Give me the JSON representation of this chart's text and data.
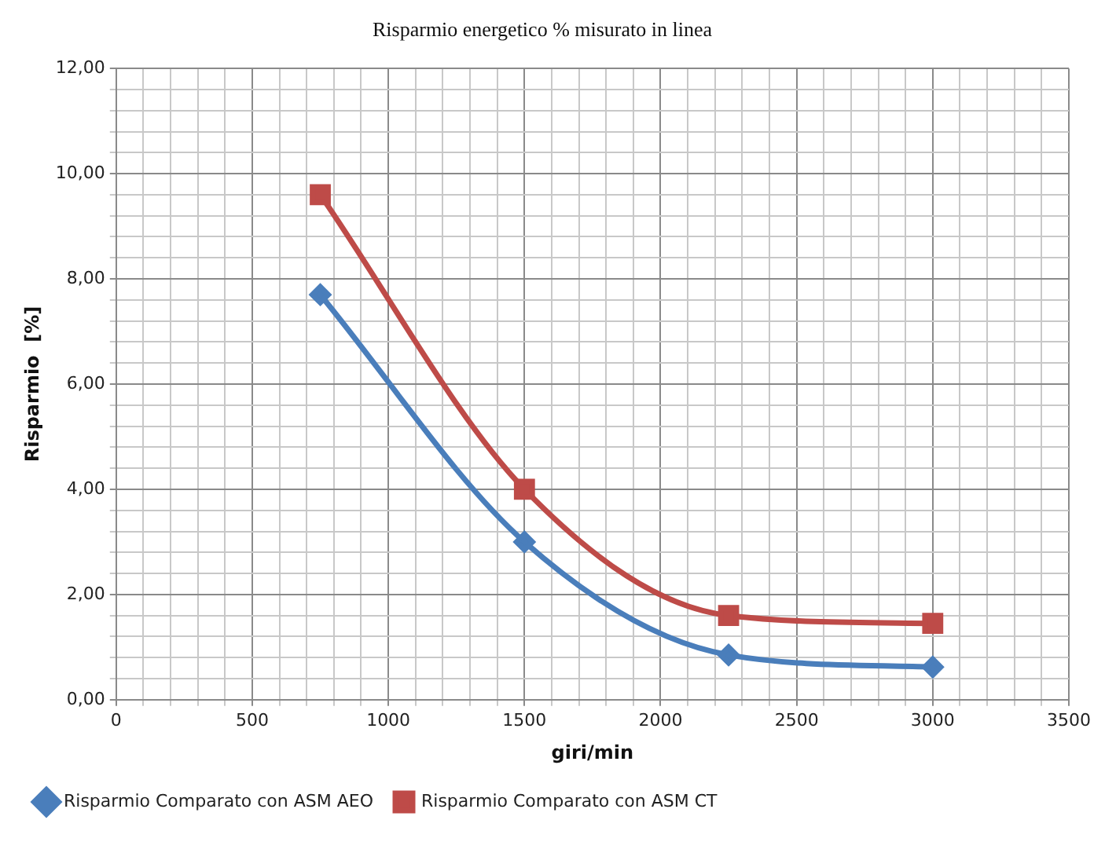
{
  "chart_data": {
    "type": "line",
    "title": "Risparmio energetico % misurato in linea",
    "xlabel": "giri/min",
    "ylabel": "Risparmio  [%]",
    "x": [
      750,
      1500,
      2250,
      3000
    ],
    "series": [
      {
        "name": "Risparmio Comparato con ASM AEO",
        "color": "#4a7ebb",
        "marker": "diamond",
        "values": [
          7.7,
          3.0,
          0.85,
          0.62
        ]
      },
      {
        "name": "Risparmio Comparato con ASM CT",
        "color": "#be4b48",
        "marker": "square",
        "values": [
          9.6,
          4.0,
          1.6,
          1.45
        ]
      }
    ],
    "xlim": [
      0,
      3500
    ],
    "xticks": [
      0,
      {
        "value": 100,
        "label": null
      },
      {
        "value": 200,
        "label": null
      },
      {
        "value": 300,
        "label": null
      },
      {
        "value": 400,
        "label": null
      },
      500,
      {
        "value": 600,
        "label": null
      },
      {
        "value": 700,
        "label": null
      },
      {
        "value": 800,
        "label": null
      },
      {
        "value": 900,
        "label": null
      },
      1000,
      {
        "value": 1100,
        "label": null
      },
      {
        "value": 1200,
        "label": null
      },
      {
        "value": 1300,
        "label": null
      },
      {
        "value": 1400,
        "label": null
      },
      1500,
      {
        "value": 1600,
        "label": null
      },
      {
        "value": 1700,
        "label": null
      },
      {
        "value": 1800,
        "label": null
      },
      {
        "value": 1900,
        "label": null
      },
      2000,
      {
        "value": 2100,
        "label": null
      },
      {
        "value": 2200,
        "label": null
      },
      {
        "value": 2300,
        "label": null
      },
      {
        "value": 2400,
        "label": null
      },
      2500,
      {
        "value": 2600,
        "label": null
      },
      {
        "value": 2700,
        "label": null
      },
      {
        "value": 2800,
        "label": null
      },
      {
        "value": 2900,
        "label": null
      },
      3000,
      {
        "value": 3100,
        "label": null
      },
      {
        "value": 3200,
        "label": null
      },
      {
        "value": 3300,
        "label": null
      },
      {
        "value": 3400,
        "label": null
      },
      3500
    ],
    "ylim": [
      0,
      12
    ],
    "yticks": [
      {
        "value": 0,
        "label": "0,00"
      },
      {
        "value": 0.4,
        "label": null
      },
      {
        "value": 0.8,
        "label": null
      },
      {
        "value": 1.2,
        "label": null
      },
      {
        "value": 1.6,
        "label": null
      },
      {
        "value": 2,
        "label": "2,00"
      },
      {
        "value": 2.4,
        "label": null
      },
      {
        "value": 2.8,
        "label": null
      },
      {
        "value": 3.2,
        "label": null
      },
      {
        "value": 3.6,
        "label": null
      },
      {
        "value": 4,
        "label": "4,00"
      },
      {
        "value": 4.4,
        "label": null
      },
      {
        "value": 4.8,
        "label": null
      },
      {
        "value": 5.2,
        "label": null
      },
      {
        "value": 5.6,
        "label": null
      },
      {
        "value": 6,
        "label": "6,00"
      },
      {
        "value": 6.4,
        "label": null
      },
      {
        "value": 6.8,
        "label": null
      },
      {
        "value": 7.2,
        "label": null
      },
      {
        "value": 7.6,
        "label": null
      },
      {
        "value": 8,
        "label": "8,00"
      },
      {
        "value": 8.4,
        "label": null
      },
      {
        "value": 8.8,
        "label": null
      },
      {
        "value": 9.2,
        "label": null
      },
      {
        "value": 9.6,
        "label": null
      },
      {
        "value": 10,
        "label": "10,00"
      },
      {
        "value": 10.4,
        "label": null
      },
      {
        "value": 10.8,
        "label": null
      },
      {
        "value": 11.2,
        "label": null
      },
      {
        "value": 11.6,
        "label": null
      },
      {
        "value": 12,
        "label": "12,00"
      }
    ],
    "grid": true,
    "legend": "bottom",
    "line_style": "solid"
  }
}
